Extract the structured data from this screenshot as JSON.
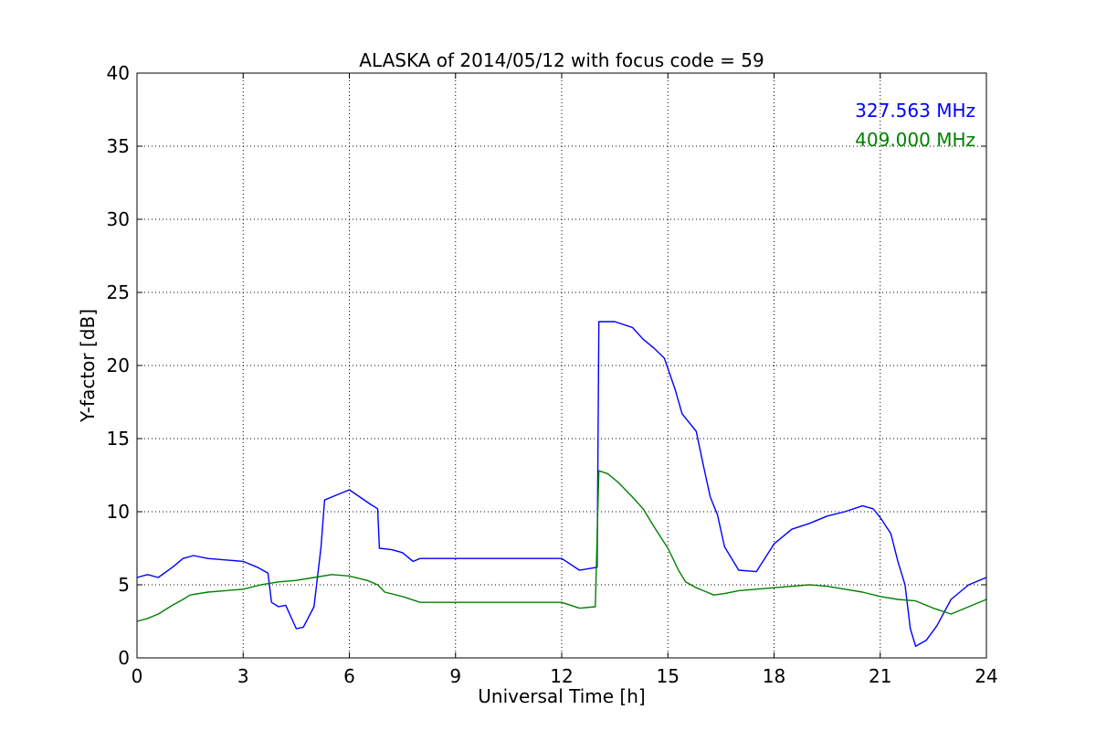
{
  "chart_data": {
    "type": "line",
    "title": "ALASKA of 2014/05/12 with focus code = 59",
    "xlabel": "Universal Time [h]",
    "ylabel": "Y-factor [dB]",
    "xlim": [
      0,
      24
    ],
    "ylim": [
      0,
      40
    ],
    "xticks": [
      0,
      3,
      6,
      9,
      12,
      15,
      18,
      21,
      24
    ],
    "yticks": [
      0,
      5,
      10,
      15,
      20,
      25,
      30,
      35,
      40
    ],
    "grid": true,
    "legend_position": "top-right",
    "series": [
      {
        "name": "327.563 MHz",
        "color": "#0000ff",
        "x": [
          0,
          0.3,
          0.6,
          1.0,
          1.3,
          1.6,
          2.0,
          2.5,
          3.0,
          3.4,
          3.7,
          3.8,
          4.0,
          4.2,
          4.5,
          4.7,
          5.0,
          5.2,
          5.3,
          5.6,
          6.0,
          6.3,
          6.6,
          6.8,
          6.85,
          7.2,
          7.5,
          7.8,
          8.0,
          12.0,
          12.5,
          13.0,
          13.05,
          13.5,
          14.0,
          14.3,
          14.6,
          14.9,
          15.2,
          15.4,
          15.8,
          16.0,
          16.2,
          16.4,
          16.6,
          17.0,
          17.5,
          18.0,
          18.5,
          19.0,
          19.5,
          20.0,
          20.5,
          20.8,
          21.0,
          21.3,
          21.5,
          21.7,
          21.85,
          22.0,
          22.3,
          22.6,
          23.0,
          23.5,
          24.0
        ],
        "y": [
          5.5,
          5.7,
          5.5,
          6.2,
          6.8,
          7.0,
          6.8,
          6.7,
          6.6,
          6.2,
          5.8,
          3.8,
          3.5,
          3.6,
          2.0,
          2.1,
          3.5,
          7.6,
          10.8,
          11.1,
          11.5,
          11.0,
          10.5,
          10.2,
          7.5,
          7.4,
          7.2,
          6.6,
          6.8,
          6.8,
          6.0,
          6.2,
          23.0,
          23.0,
          22.6,
          21.8,
          21.2,
          20.5,
          18.4,
          16.7,
          15.5,
          13.2,
          11.0,
          9.8,
          7.6,
          6.0,
          5.9,
          7.8,
          8.8,
          9.2,
          9.7,
          10.0,
          10.4,
          10.2,
          9.6,
          8.5,
          6.6,
          5.0,
          2.0,
          0.8,
          1.2,
          2.2,
          4.0,
          5.0,
          5.5
        ]
      },
      {
        "name": "409.000 MHz",
        "color": "#008000",
        "x": [
          0,
          0.3,
          0.6,
          1.0,
          1.3,
          1.5,
          2.0,
          2.5,
          3.0,
          3.5,
          4.0,
          4.5,
          5.0,
          5.5,
          6.0,
          6.5,
          6.8,
          7.0,
          7.5,
          8.0,
          12.0,
          12.5,
          12.95,
          13.05,
          13.3,
          13.6,
          14.0,
          14.3,
          14.6,
          15.0,
          15.3,
          15.5,
          15.8,
          16.0,
          16.3,
          16.6,
          17.0,
          17.5,
          18.0,
          18.5,
          19.0,
          19.5,
          20.0,
          20.5,
          21.0,
          21.5,
          22.0,
          22.5,
          23.0,
          23.5,
          24.0
        ],
        "y": [
          2.5,
          2.7,
          3.0,
          3.6,
          4.0,
          4.3,
          4.5,
          4.6,
          4.7,
          5.0,
          5.2,
          5.3,
          5.5,
          5.7,
          5.6,
          5.3,
          5.0,
          4.5,
          4.2,
          3.8,
          3.8,
          3.4,
          3.5,
          12.8,
          12.6,
          12.0,
          11.0,
          10.2,
          9.0,
          7.5,
          6.0,
          5.2,
          4.8,
          4.6,
          4.3,
          4.4,
          4.6,
          4.7,
          4.8,
          4.9,
          5.0,
          4.9,
          4.7,
          4.5,
          4.2,
          4.0,
          3.9,
          3.4,
          3.0,
          3.5,
          4.0
        ]
      }
    ]
  }
}
